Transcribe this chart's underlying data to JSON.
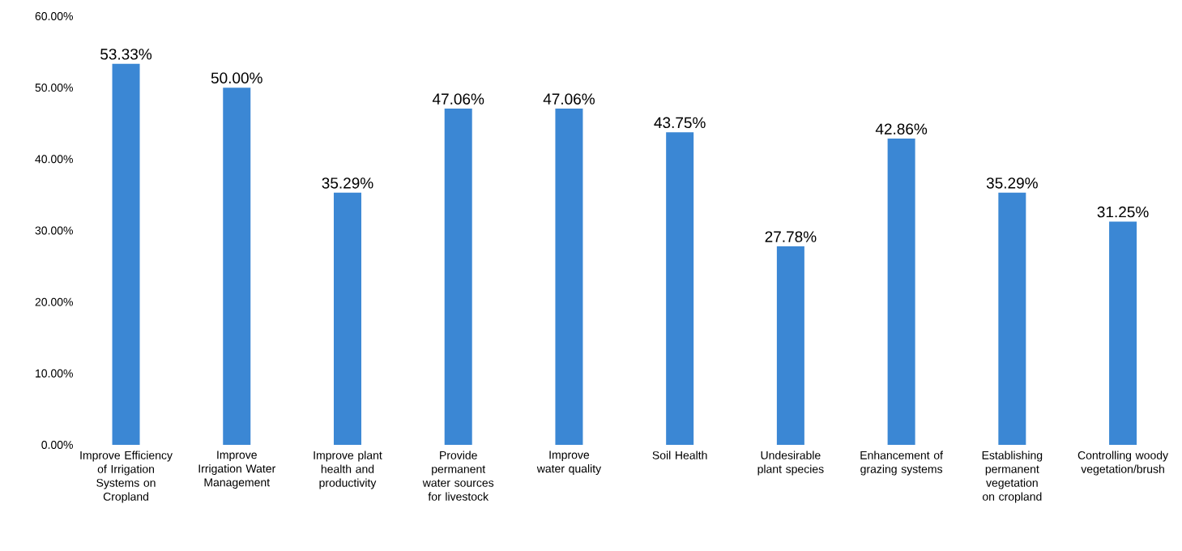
{
  "chart_data": {
    "type": "bar",
    "categories": [
      "Improve Efficiency of Irrigation Systems on Cropland",
      "Improve Irrigation Water Management",
      "Improve plant health and productivity",
      "Provide permanent water sources for livestock",
      "Improve water quality",
      "Soil Health",
      "Undesirable plant species",
      "Enhancement of grazing systems",
      "Establishing permanent vegetation on cropland",
      "Controlling woody vegetation/brush"
    ],
    "values": [
      53.33,
      50.0,
      35.29,
      47.06,
      47.06,
      43.75,
      27.78,
      42.86,
      35.29,
      31.25
    ],
    "value_labels": [
      "53.33%",
      "50.00%",
      "35.29%",
      "47.06%",
      "47.06%",
      "43.75%",
      "27.78%",
      "42.86%",
      "35.29%",
      "31.25%"
    ],
    "color": "#3b87d4",
    "ylim": [
      0,
      60
    ],
    "yticks": [
      {
        "value": 0,
        "label": "0.00%"
      },
      {
        "value": 10,
        "label": "10.00%"
      },
      {
        "value": 20,
        "label": "20.00%"
      },
      {
        "value": 30,
        "label": "30.00%"
      },
      {
        "value": 40,
        "label": "40.00%"
      },
      {
        "value": 50,
        "label": "50.00%"
      },
      {
        "value": 60,
        "label": "60.00%"
      }
    ],
    "grid": false
  }
}
